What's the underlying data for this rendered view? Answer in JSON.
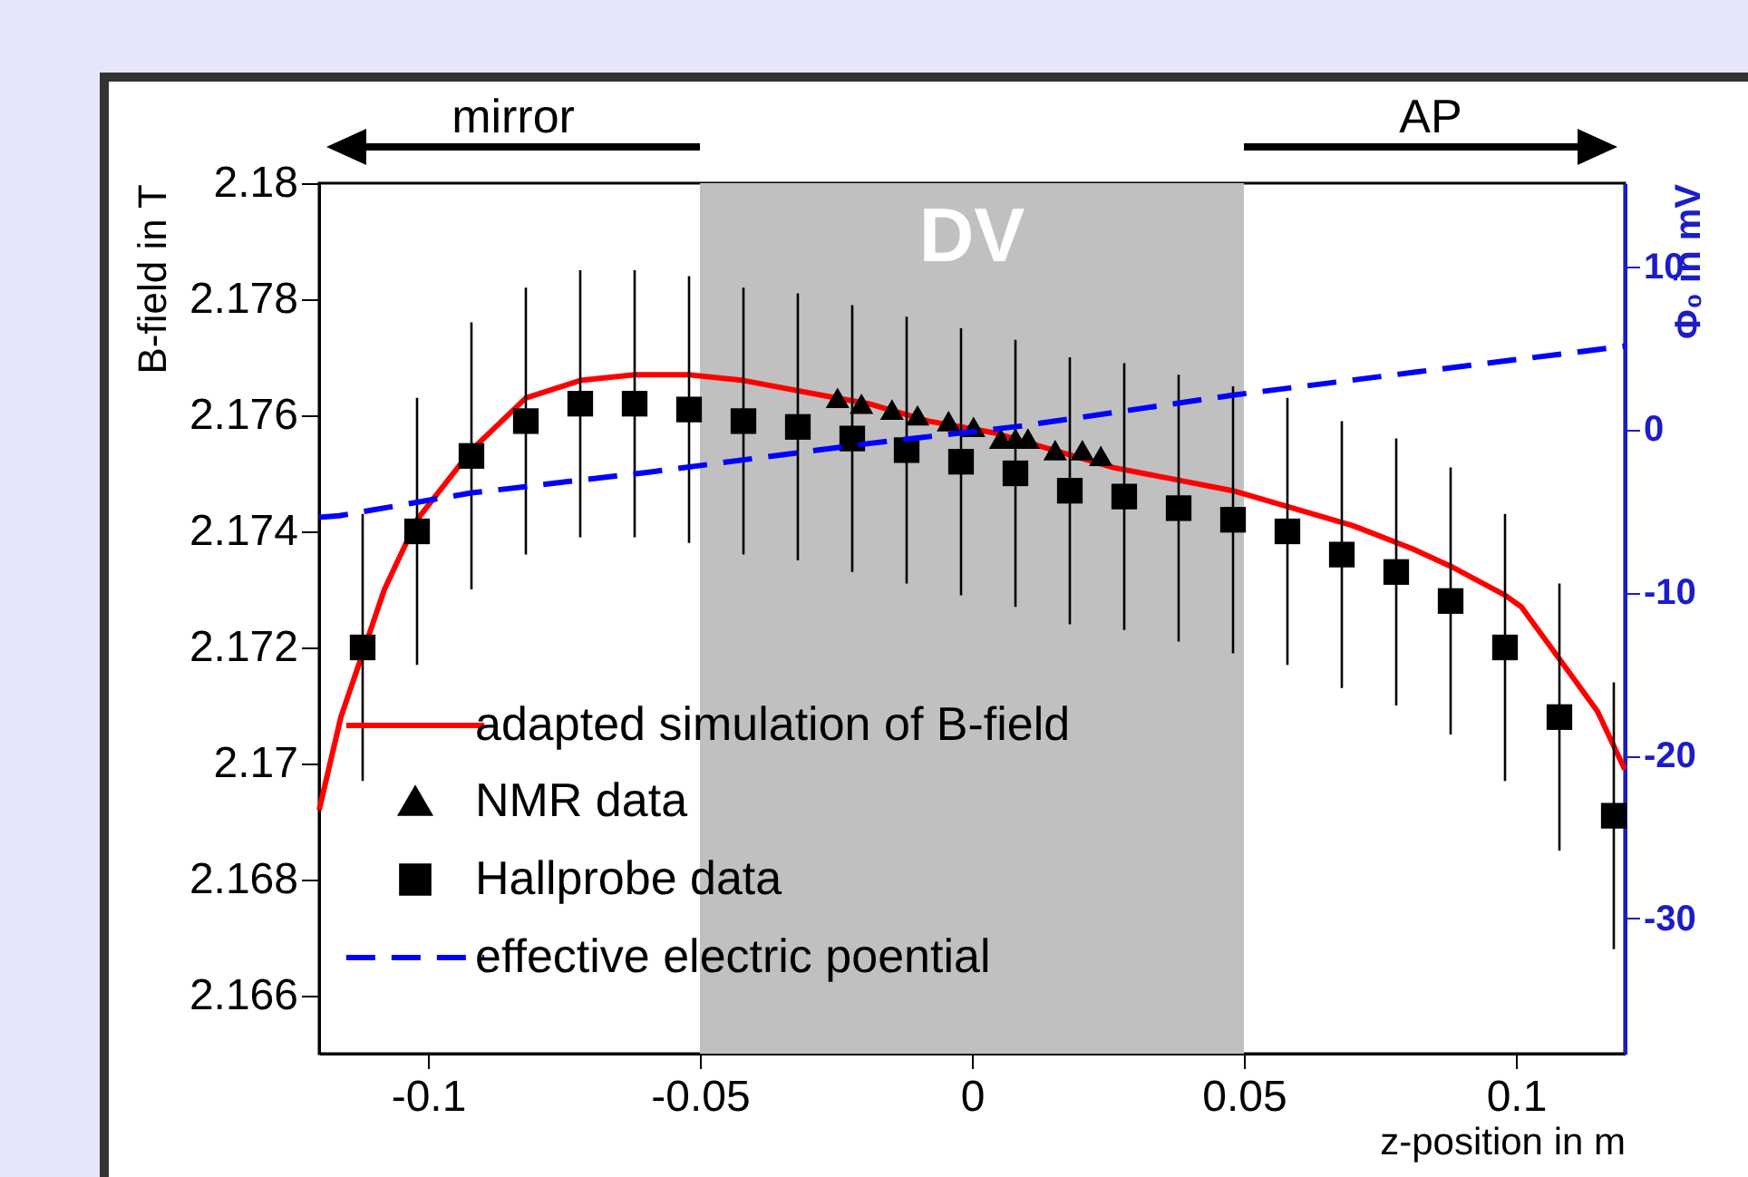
{
  "chart_data": {
    "type": "scatter",
    "xlabel": "z-position in m",
    "ylabel": "B-field in T",
    "y2label": "Φ₀ in mV",
    "xlim": [
      -0.12,
      0.12
    ],
    "xticks": [
      -0.1,
      -0.05,
      0,
      0.05,
      0.1
    ],
    "ylim": [
      2.165,
      2.18
    ],
    "yticks": [
      2.166,
      2.168,
      2.17,
      2.172,
      2.174,
      2.176,
      2.178,
      2.18
    ],
    "y2lim": [
      -38.3,
      15.1
    ],
    "y2ticks": [
      -30,
      -20,
      -10,
      0,
      10
    ],
    "legend": "bottom left",
    "bands": [
      {
        "axis": "x",
        "from": -0.05,
        "to": 0.05,
        "label": "DV",
        "color": "#c0c0c0"
      }
    ],
    "annotations": [
      "mirror",
      "AP"
    ],
    "series": [
      {
        "name": "adapted simulation of B-field",
        "type": "line",
        "line_style": "solid",
        "color": "#ff0000",
        "x": [
          -0.12,
          -0.116,
          -0.108,
          -0.102,
          -0.092,
          -0.082,
          -0.072,
          -0.062,
          -0.052,
          -0.042,
          -0.025,
          -0.019,
          -0.008,
          0.004,
          0.015,
          0.026,
          0.037,
          0.048,
          0.059,
          0.07,
          0.081,
          0.088,
          0.098,
          0.101,
          0.108,
          0.115,
          0.12
        ],
        "values": [
          2.1692,
          2.1708,
          2.173,
          2.1742,
          2.1754,
          2.1763,
          2.1766,
          2.1767,
          2.1767,
          2.1766,
          2.1763,
          2.1762,
          2.1759,
          2.1757,
          2.1754,
          2.1751,
          2.1749,
          2.1747,
          2.1744,
          2.1741,
          2.1737,
          2.1734,
          2.1729,
          2.1727,
          2.1718,
          2.1709,
          2.1699
        ]
      },
      {
        "name": "NMR data",
        "type": "scatter",
        "marker": "triangle",
        "color": "#000000",
        "x": [
          -0.0247,
          -0.0203,
          -0.0147,
          -0.01,
          -0.0043,
          0.0003,
          0.0053,
          0.008,
          0.0103,
          0.0153,
          0.0203,
          0.0237
        ],
        "values": [
          2.1763,
          2.1762,
          2.1761,
          2.176,
          2.1759,
          2.1758,
          2.1756,
          2.1756,
          2.1756,
          2.1754,
          2.1754,
          2.1753
        ]
      },
      {
        "name": "Hallprobe data",
        "type": "scatter",
        "marker": "square",
        "color": "#000000",
        "x": [
          -0.112,
          -0.102,
          -0.092,
          -0.082,
          -0.072,
          -0.062,
          -0.052,
          -0.042,
          -0.032,
          -0.022,
          -0.012,
          -0.002,
          0.008,
          0.018,
          0.028,
          0.038,
          0.048,
          0.058,
          0.068,
          0.078,
          0.088,
          0.098,
          0.108,
          0.118
        ],
        "values": [
          2.172,
          2.174,
          2.1753,
          2.1759,
          2.1762,
          2.1762,
          2.1761,
          2.1759,
          2.1758,
          2.1756,
          2.1754,
          2.1752,
          2.175,
          2.1747,
          2.1746,
          2.1744,
          2.1742,
          2.174,
          2.1736,
          2.1733,
          2.1728,
          2.172,
          2.1708,
          2.1691
        ],
        "errors": [
          0.0023,
          0.0023,
          0.0023,
          0.0023,
          0.0023,
          0.0023,
          0.0023,
          0.0023,
          0.0023,
          0.0023,
          0.0023,
          0.0023,
          0.0023,
          0.0023,
          0.0023,
          0.0023,
          0.0023,
          0.0023,
          0.0023,
          0.0023,
          0.0023,
          0.0023,
          0.0023,
          0.0023
        ],
        "xerrors": [
          0.0012,
          0.0012,
          0.0012,
          0.0012,
          0.0012,
          0.0012,
          0.0012,
          0.0012,
          0.0012,
          0.0012,
          0.0012,
          0.0012,
          0.0012,
          0.0012,
          0.0012,
          0.0012,
          0.0012,
          0.0012,
          0.0012,
          0.0012,
          0.0012,
          0.0012,
          0.0012,
          0.0012
        ]
      },
      {
        "name": "effective electric poential",
        "type": "line",
        "line_style": "dashed",
        "axis": "y2",
        "color": "#0000ff",
        "x": [
          -0.12,
          -0.1163,
          -0.092,
          -0.0587,
          -0.0197,
          0.009,
          0.048,
          0.0813,
          0.12
        ],
        "values": [
          -5.4,
          -5.3,
          -3.9,
          -2.6,
          -0.9,
          0.2,
          2.1,
          3.5,
          5.1
        ]
      }
    ]
  }
}
